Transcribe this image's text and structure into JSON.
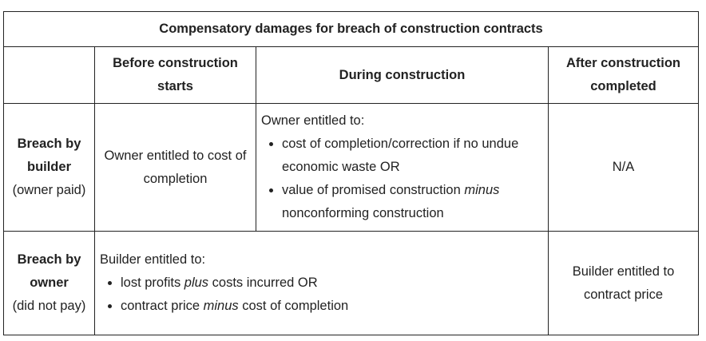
{
  "table": {
    "title": "Compensatory damages for breach of construction contracts",
    "columns": [
      "",
      "Before construction starts",
      "During construction",
      "After construction completed"
    ],
    "rows": {
      "builder": {
        "head_bold": "Breach by builder",
        "head_sub": "(owner paid)",
        "before": "Owner entitled to cost of completion",
        "during_intro": "Owner entitled to:",
        "during_item1": "cost of completion/correction if no undue economic waste OR",
        "during_item2_a": "value of promised construction ",
        "during_item2_em": "minus",
        "during_item2_b": " nonconforming construction",
        "after": "N/A"
      },
      "owner": {
        "head_bold": "Breach by owner",
        "head_sub": "(did not pay)",
        "span_intro": "Builder entitled to:",
        "item1_a": "lost profits ",
        "item1_em": "plus",
        "item1_b": " costs incurred OR",
        "item2_a": "contract price ",
        "item2_em": "minus",
        "item2_b": " cost of completion",
        "after": "Builder entitled to contract price"
      }
    }
  }
}
